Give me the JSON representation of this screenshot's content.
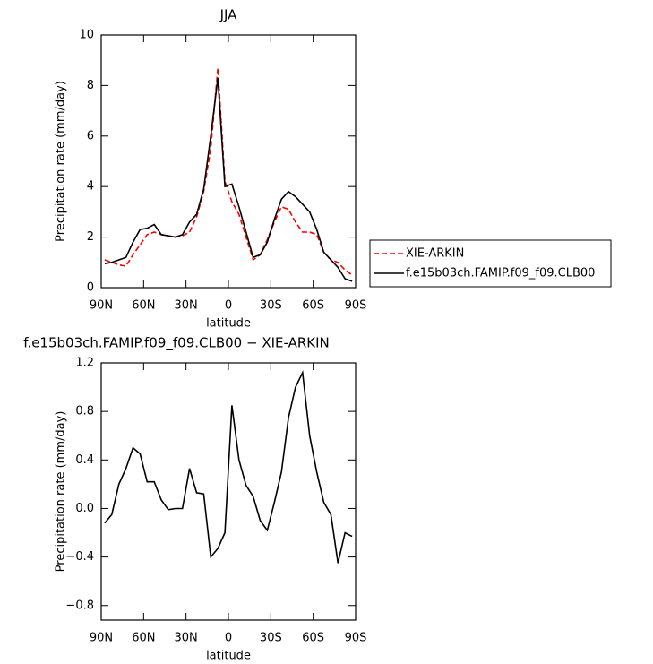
{
  "chart_data": [
    {
      "type": "line",
      "title": "JJA",
      "x_label": "latitude",
      "y_label": "Precipitation rate (mm/day)",
      "x": [
        87.5,
        82.5,
        77.5,
        72.5,
        67.5,
        62.5,
        57.5,
        52.5,
        47.5,
        42.5,
        37.5,
        32.5,
        27.5,
        22.5,
        17.5,
        12.5,
        7.5,
        2.5,
        -2.5,
        -7.5,
        -12.5,
        -17.5,
        -22.5,
        -27.5,
        -32.5,
        -37.5,
        -42.5,
        -47.5,
        -52.5,
        -57.5,
        -62.5,
        -67.5,
        -72.5,
        -77.5,
        -82.5,
        -87.5
      ],
      "series": [
        {
          "name": "XIE-ARKIN",
          "color": "#ff0000",
          "line_style": "dashed",
          "values": [
            1.1,
            1.0,
            0.9,
            0.85,
            1.3,
            1.7,
            2.1,
            2.2,
            2.1,
            2.05,
            2.0,
            2.05,
            2.2,
            2.8,
            3.8,
            5.5,
            8.7,
            4.2,
            3.4,
            2.9,
            2.0,
            1.1,
            1.3,
            1.9,
            2.6,
            3.2,
            3.1,
            2.6,
            2.2,
            2.2,
            2.1,
            1.4,
            1.1,
            1.0,
            0.7,
            0.5
          ]
        },
        {
          "name": "f.e15b03ch.FAMIP.f09_f09.CLB00",
          "color": "#000000",
          "line_style": "solid",
          "values": [
            0.95,
            1.0,
            1.1,
            1.2,
            1.8,
            2.3,
            2.35,
            2.5,
            2.1,
            2.05,
            2.0,
            2.1,
            2.6,
            2.9,
            3.9,
            6.0,
            8.3,
            4.0,
            4.1,
            3.2,
            2.2,
            1.2,
            1.3,
            1.8,
            2.7,
            3.5,
            3.8,
            3.6,
            3.3,
            3.0,
            2.3,
            1.4,
            1.1,
            0.8,
            0.35,
            0.25
          ]
        }
      ],
      "xlim": [
        90,
        -90
      ],
      "xticks": [
        {
          "value": 90,
          "label": "90N"
        },
        {
          "value": 60,
          "label": "60N"
        },
        {
          "value": 30,
          "label": "30N"
        },
        0,
        {
          "value": -30,
          "label": "30S"
        },
        {
          "value": -60,
          "label": "60S"
        },
        {
          "value": -90,
          "label": "90S"
        }
      ],
      "ylim": [
        0,
        10
      ],
      "yticks": [
        0,
        2,
        4,
        6,
        8,
        10
      ],
      "legend": "right"
    },
    {
      "type": "line",
      "title": "f.e15b03ch.FAMIP.f09_f09.CLB00 − XIE-ARKIN",
      "x_label": "latitude",
      "y_label": "Precipitation rate (mm/day)",
      "x": [
        87.5,
        82.5,
        77.5,
        72.5,
        67.5,
        62.5,
        57.5,
        52.5,
        47.5,
        42.5,
        37.5,
        32.5,
        27.5,
        22.5,
        17.5,
        12.5,
        7.5,
        2.5,
        -2.5,
        -7.5,
        -12.5,
        -17.5,
        -22.5,
        -27.5,
        -32.5,
        -37.5,
        -42.5,
        -47.5,
        -52.5,
        -57.5,
        -62.5,
        -67.5,
        -72.5,
        -77.5,
        -82.5,
        -87.5
      ],
      "series": [
        {
          "color": "#000000",
          "line_style": "solid",
          "values": [
            -0.12,
            -0.05,
            0.2,
            0.33,
            0.5,
            0.45,
            0.22,
            0.22,
            0.07,
            -0.01,
            0.0,
            0.0,
            0.33,
            0.13,
            0.12,
            -0.4,
            -0.33,
            -0.2,
            0.85,
            0.4,
            0.19,
            0.1,
            -0.1,
            -0.18,
            0.05,
            0.3,
            0.75,
            1.0,
            1.12,
            0.6,
            0.3,
            0.05,
            -0.05,
            -0.45,
            -0.2,
            -0.23
          ]
        }
      ],
      "xlim": [
        90,
        -90
      ],
      "xticks": [
        {
          "value": 90,
          "label": "90N"
        },
        {
          "value": 60,
          "label": "60N"
        },
        {
          "value": 30,
          "label": "30N"
        },
        0,
        {
          "value": -30,
          "label": "30S"
        },
        {
          "value": -60,
          "label": "60S"
        },
        {
          "value": -90,
          "label": "90S"
        }
      ],
      "ylim": [
        -0.92,
        1.2
      ],
      "yticks": [
        {
          "value": -0.8,
          "label": "−0.8"
        },
        {
          "value": -0.4,
          "label": "−0.4"
        },
        {
          "value": 0,
          "label": "0.0"
        },
        0.4,
        0.8,
        1.2
      ]
    }
  ]
}
